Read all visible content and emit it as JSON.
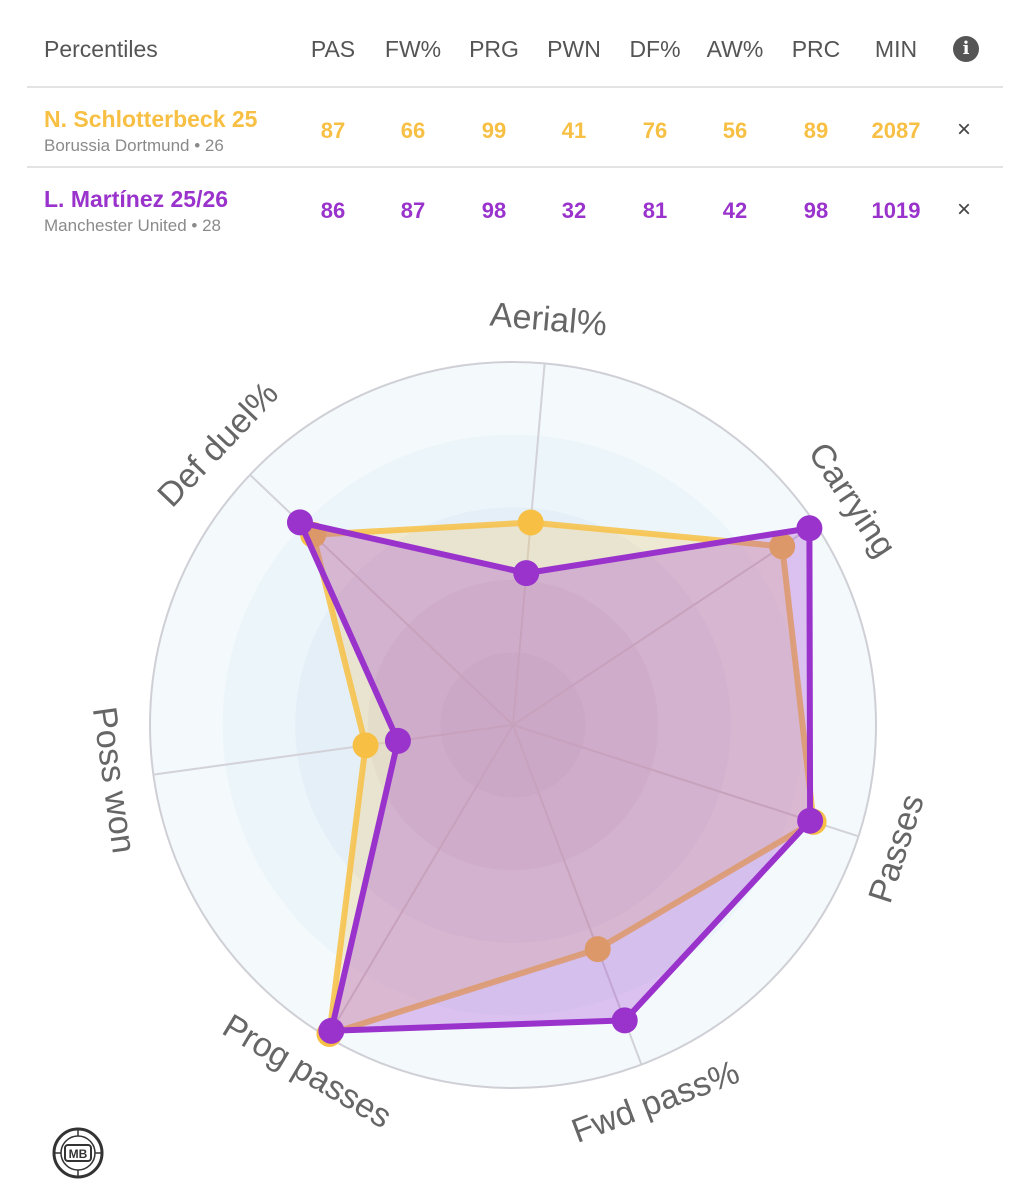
{
  "table": {
    "title": "Percentiles",
    "columns": [
      "PAS",
      "FW%",
      "PRG",
      "PWN",
      "DF%",
      "AW%",
      "PRC",
      "MIN"
    ],
    "players": [
      {
        "name": "N. Schlotterbeck 25",
        "club": "Borussia Dortmund • 26",
        "values": [
          "87",
          "66",
          "99",
          "41",
          "76",
          "56",
          "89",
          "2087"
        ],
        "color": "#f7c044",
        "close": "×"
      },
      {
        "name": "L. Martínez 25/26",
        "club": "Manchester United • 28",
        "values": [
          "86",
          "87",
          "98",
          "32",
          "81",
          "42",
          "98",
          "1019"
        ],
        "color": "#9933cc",
        "close": "×"
      }
    ]
  },
  "chart_data": {
    "type": "radar",
    "axes": [
      "Aerial%",
      "Carrying",
      "Passes",
      "Fwd pass%",
      "Prog passes",
      "Poss won",
      "Def duel%"
    ],
    "range": [
      0,
      100
    ],
    "grid": true,
    "series": [
      {
        "name": "N. Schlotterbeck 25",
        "values": [
          56,
          89,
          87,
          66,
          99,
          41,
          76
        ],
        "color": "#f7c044"
      },
      {
        "name": "L. Martínez 25/26",
        "values": [
          42,
          98,
          86,
          87,
          98,
          32,
          81
        ],
        "color": "#9933cc"
      }
    ]
  },
  "logo": {
    "text": "MB"
  }
}
